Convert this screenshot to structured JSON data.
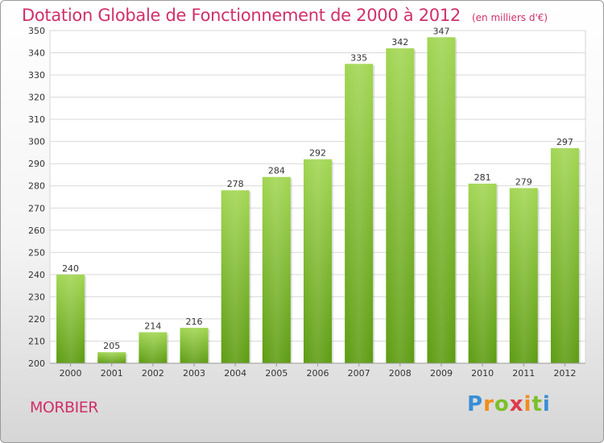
{
  "title": "Dotation Globale de Fonctionnement de 2000 à 2012",
  "unit": "(en milliers d'€)",
  "commune": "MORBIER",
  "logo": "Proxiti",
  "colors": {
    "title": "#d0306a",
    "bar_light": "#9fd44c",
    "bar_dark": "#5f9e14"
  },
  "chart_data": {
    "type": "bar",
    "title": "Dotation Globale de Fonctionnement de 2000 à 2012",
    "subtitle": "(en milliers d'€)",
    "xlabel": "",
    "ylabel": "",
    "categories": [
      "2000",
      "2001",
      "2002",
      "2003",
      "2004",
      "2005",
      "2006",
      "2007",
      "2008",
      "2009",
      "2010",
      "2011",
      "2012"
    ],
    "values": [
      240,
      205,
      214,
      216,
      278,
      284,
      292,
      335,
      342,
      347,
      281,
      279,
      297
    ],
    "ylim": [
      200,
      350
    ],
    "yticks": [
      200,
      210,
      220,
      230,
      240,
      250,
      260,
      270,
      280,
      290,
      300,
      310,
      320,
      330,
      340,
      350
    ],
    "grid": true,
    "legend": "none"
  }
}
